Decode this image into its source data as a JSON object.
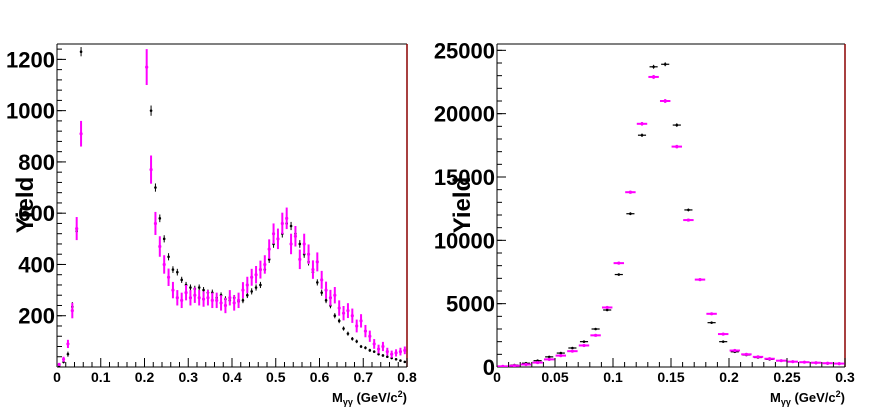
{
  "chart_data": [
    {
      "type": "scatter",
      "ylabel": "Yield",
      "xlabel": "M",
      "xlabel_sub": "γγ",
      "xlabel_unit": "(GeV/c",
      "xlabel_sup": "2",
      "xlabel_close": ")",
      "xlim": [
        0,
        0.8
      ],
      "ylim": [
        0,
        1260
      ],
      "x_ticks": [
        0,
        0.1,
        0.2,
        0.3,
        0.4,
        0.5,
        0.6,
        0.7,
        0.8
      ],
      "x_tick_labels": [
        "0",
        "0.1",
        "0.2",
        "0.3",
        "0.4",
        "0.5",
        "0.6",
        "0.7",
        "0.8"
      ],
      "y_ticks": [
        200,
        400,
        600,
        800,
        1000,
        1200
      ],
      "y_tick_labels": [
        "200",
        "400",
        "600",
        "800",
        "1000",
        "1200"
      ],
      "grid": false,
      "frame_color": "#8b0000",
      "series": [
        {
          "color": "#000000",
          "x": [
            0.005,
            0.015,
            0.025,
            0.035,
            0.045,
            0.055,
            0.215,
            0.225,
            0.235,
            0.245,
            0.255,
            0.265,
            0.275,
            0.285,
            0.295,
            0.305,
            0.315,
            0.325,
            0.335,
            0.345,
            0.355,
            0.365,
            0.375,
            0.385,
            0.395,
            0.405,
            0.415,
            0.425,
            0.435,
            0.445,
            0.455,
            0.465,
            0.475,
            0.485,
            0.495,
            0.505,
            0.515,
            0.525,
            0.535,
            0.545,
            0.555,
            0.565,
            0.575,
            0.585,
            0.595,
            0.605,
            0.615,
            0.625,
            0.635,
            0.645,
            0.655,
            0.665,
            0.675,
            0.685,
            0.695,
            0.705,
            0.715,
            0.725,
            0.735,
            0.745,
            0.755,
            0.765,
            0.775,
            0.785,
            0.795
          ],
          "y": [
            5,
            20,
            50,
            235,
            530,
            1230,
            1000,
            700,
            580,
            500,
            430,
            380,
            370,
            340,
            320,
            310,
            305,
            310,
            300,
            290,
            290,
            270,
            280,
            265,
            260,
            270,
            255,
            260,
            280,
            295,
            310,
            320,
            380,
            420,
            480,
            500,
            520,
            560,
            550,
            520,
            480,
            440,
            410,
            370,
            330,
            290,
            260,
            240,
            200,
            180,
            150,
            130,
            110,
            100,
            80,
            75,
            65,
            60,
            50,
            45,
            40,
            35,
            30,
            25,
            20
          ],
          "yerr": [
            4,
            6,
            10,
            18,
            25,
            18,
            20,
            16,
            15,
            14,
            14,
            13,
            13,
            12,
            12,
            12,
            12,
            12,
            12,
            12,
            12,
            11,
            11,
            11,
            11,
            11,
            11,
            11,
            11,
            12,
            12,
            12,
            13,
            14,
            15,
            15,
            15,
            16,
            16,
            15,
            15,
            14,
            14,
            13,
            12,
            12,
            11,
            11,
            10,
            9,
            8,
            8,
            7,
            7,
            6,
            6,
            6,
            5,
            5,
            5,
            4,
            4,
            4,
            4,
            4
          ]
        },
        {
          "color": "#ff00ff",
          "x": [
            0.005,
            0.015,
            0.025,
            0.035,
            0.045,
            0.055,
            0.065,
            0.205,
            0.215,
            0.225,
            0.235,
            0.245,
            0.255,
            0.265,
            0.275,
            0.285,
            0.295,
            0.305,
            0.315,
            0.325,
            0.335,
            0.345,
            0.355,
            0.365,
            0.375,
            0.385,
            0.395,
            0.405,
            0.415,
            0.425,
            0.435,
            0.445,
            0.455,
            0.465,
            0.475,
            0.485,
            0.495,
            0.505,
            0.515,
            0.525,
            0.535,
            0.545,
            0.555,
            0.565,
            0.575,
            0.585,
            0.595,
            0.605,
            0.615,
            0.625,
            0.635,
            0.645,
            0.655,
            0.665,
            0.675,
            0.685,
            0.695,
            0.705,
            0.715,
            0.725,
            0.735,
            0.745,
            0.755,
            0.765,
            0.775,
            0.785,
            0.795
          ],
          "y": [
            10,
            30,
            90,
            220,
            540,
            910,
            0,
            1170,
            770,
            560,
            470,
            400,
            350,
            300,
            270,
            260,
            290,
            270,
            280,
            270,
            265,
            270,
            260,
            260,
            250,
            240,
            270,
            250,
            260,
            300,
            320,
            350,
            360,
            380,
            400,
            460,
            520,
            500,
            560,
            580,
            480,
            510,
            420,
            480,
            440,
            380,
            410,
            340,
            300,
            270,
            280,
            230,
            210,
            220,
            200,
            160,
            180,
            140,
            120,
            90,
            70,
            80,
            60,
            50,
            55,
            60,
            65
          ],
          "yerr": [
            6,
            10,
            16,
            30,
            45,
            50,
            0,
            70,
            55,
            45,
            40,
            36,
            34,
            32,
            30,
            30,
            30,
            30,
            30,
            30,
            30,
            30,
            30,
            30,
            30,
            30,
            30,
            30,
            30,
            31,
            32,
            33,
            34,
            35,
            36,
            38,
            40,
            40,
            42,
            42,
            40,
            40,
            38,
            40,
            38,
            36,
            37,
            35,
            33,
            31,
            32,
            30,
            28,
            29,
            28,
            25,
            26,
            24,
            22,
            19,
            17,
            18,
            15,
            14,
            14,
            15,
            15
          ]
        }
      ]
    },
    {
      "type": "scatter",
      "ylabel": "Yield",
      "xlabel": "M",
      "xlabel_sub": "γγ",
      "xlabel_unit": "(GeV/c",
      "xlabel_sup": "2",
      "xlabel_close": ")",
      "xlim": [
        0,
        0.3
      ],
      "ylim": [
        0,
        25500
      ],
      "x_ticks": [
        0,
        0.05,
        0.1,
        0.15,
        0.2,
        0.25,
        0.3
      ],
      "x_tick_labels": [
        "0",
        "0.05",
        "0.1",
        "0.15",
        "0.2",
        "0.25",
        "0.3"
      ],
      "y_ticks": [
        0,
        5000,
        10000,
        15000,
        20000,
        25000
      ],
      "y_tick_labels": [
        "0",
        "5000",
        "10000",
        "15000",
        "20000",
        "25000"
      ],
      "grid": false,
      "frame_color": "#8b0000",
      "series": [
        {
          "color": "#000000",
          "x": [
            0.005,
            0.015,
            0.025,
            0.035,
            0.045,
            0.055,
            0.065,
            0.075,
            0.085,
            0.095,
            0.105,
            0.115,
            0.125,
            0.135,
            0.145,
            0.155,
            0.165,
            0.175,
            0.185,
            0.195,
            0.205,
            0.215,
            0.225,
            0.235,
            0.245,
            0.255,
            0.265,
            0.275,
            0.285,
            0.295
          ],
          "y": [
            50,
            150,
            300,
            500,
            800,
            1100,
            1500,
            2000,
            3000,
            4500,
            7300,
            12100,
            18300,
            23700,
            23900,
            19100,
            12400,
            6900,
            3500,
            2000,
            1200,
            950,
            750,
            600,
            500,
            420,
            380,
            320,
            280,
            250
          ],
          "yerr": [
            10,
            15,
            20,
            25,
            30,
            35,
            40,
            45,
            55,
            70,
            85,
            110,
            135,
            155,
            155,
            140,
            110,
            85,
            60,
            45,
            35,
            30,
            28,
            25,
            22,
            20,
            20,
            18,
            17,
            16
          ]
        },
        {
          "color": "#ff00ff",
          "x": [
            0.005,
            0.015,
            0.025,
            0.035,
            0.045,
            0.055,
            0.065,
            0.075,
            0.085,
            0.095,
            0.105,
            0.115,
            0.125,
            0.135,
            0.145,
            0.155,
            0.165,
            0.175,
            0.185,
            0.195,
            0.205,
            0.215,
            0.225,
            0.235,
            0.245,
            0.255,
            0.265,
            0.275,
            0.285,
            0.295
          ],
          "y": [
            50,
            100,
            200,
            350,
            600,
            900,
            1250,
            1700,
            2500,
            4700,
            8200,
            13800,
            19200,
            22900,
            21000,
            17400,
            11600,
            6900,
            4200,
            2600,
            1300,
            1000,
            800,
            650,
            500,
            420,
            380,
            340,
            300,
            270
          ],
          "yerr": [
            10,
            15,
            20,
            25,
            30,
            35,
            40,
            45,
            55,
            75,
            95,
            120,
            140,
            155,
            150,
            135,
            110,
            85,
            65,
            50,
            36,
            32,
            28,
            25,
            22,
            20,
            20,
            18,
            17,
            16
          ]
        }
      ]
    }
  ]
}
